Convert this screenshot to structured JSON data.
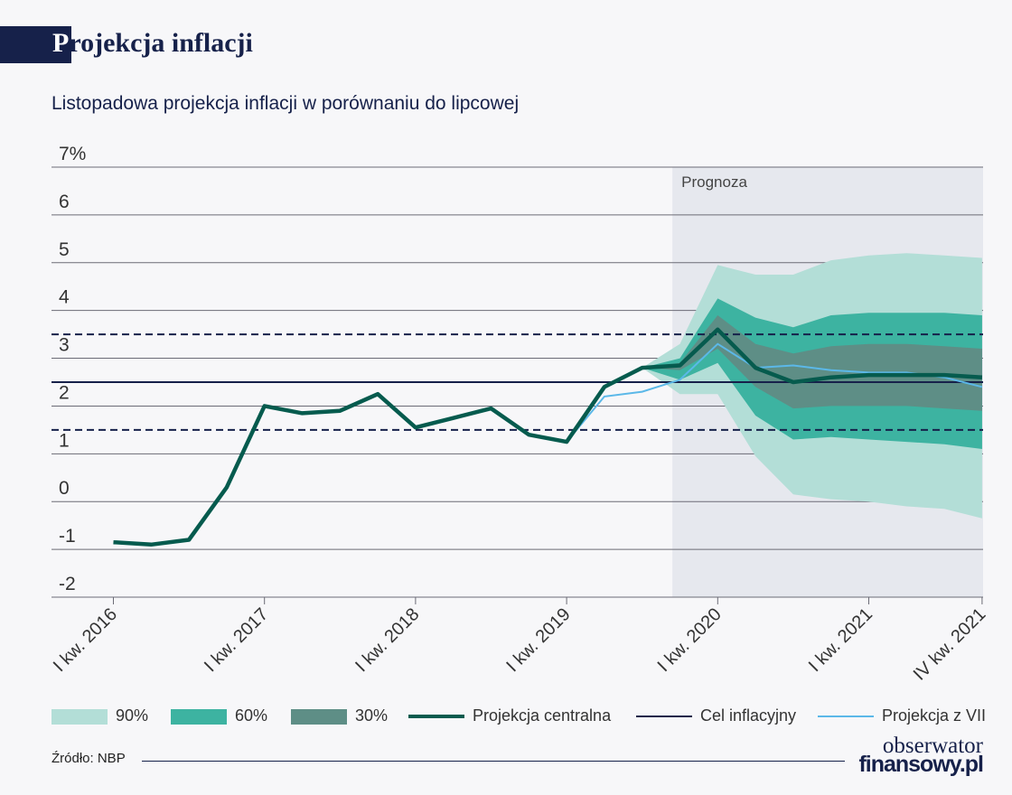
{
  "header": {
    "title_first": "P",
    "title_rest": "rojekcja inflacji"
  },
  "subtitle": "Listopadowa projekcja inflacji w porównaniu do lipcowej",
  "colors": {
    "background": "#f7f7f9",
    "forecast_area": "#e6e8ee",
    "band_90": "#b3ded7",
    "band_60": "#3db3a1",
    "band_30": "#5e8e86",
    "central": "#065b4e",
    "target": "#16214a",
    "july": "#5bb8e8",
    "grid": "#6b6b76"
  },
  "chart_data": {
    "type": "line",
    "forecast_label": "Prognoza",
    "forecast_start_index": 14.8,
    "y_ticks": [
      "7%",
      "6",
      "5",
      "4",
      "3",
      "2",
      "1",
      "0",
      "-1",
      "-2"
    ],
    "y_tick_values": [
      7,
      6,
      5,
      4,
      3,
      2,
      1,
      0,
      -1,
      -2
    ],
    "ylim": [
      -2,
      7
    ],
    "x_labels": [
      {
        "i": 0,
        "label": "I kw. 2016"
      },
      {
        "i": 4,
        "label": "I kw. 2017"
      },
      {
        "i": 8,
        "label": "I kw. 2018"
      },
      {
        "i": 12,
        "label": "I kw. 2019"
      },
      {
        "i": 16,
        "label": "I kw. 2020"
      },
      {
        "i": 20,
        "label": "I kw. 2021"
      },
      {
        "i": 23,
        "label": "IV kw. 2021"
      }
    ],
    "central": [
      -0.85,
      -0.9,
      -0.8,
      0.3,
      2.0,
      1.85,
      1.9,
      2.25,
      1.55,
      1.75,
      1.95,
      1.4,
      1.25,
      2.4,
      2.8,
      2.85,
      3.6,
      2.8,
      2.5,
      2.6,
      2.65,
      2.65,
      2.65,
      2.6
    ],
    "july": {
      "start_index": 12,
      "values": [
        1.25,
        2.2,
        2.3,
        2.55,
        3.3,
        2.8,
        2.85,
        2.75,
        2.7,
        2.7,
        2.6,
        2.4
      ]
    },
    "band_start_index": 14,
    "bands": {
      "p90_upper": [
        2.8,
        3.3,
        4.95,
        4.75,
        4.75,
        5.05,
        5.15,
        5.2,
        5.15,
        5.1
      ],
      "p90_lower": [
        2.8,
        2.25,
        2.25,
        0.95,
        0.15,
        0.05,
        0.0,
        -0.1,
        -0.15,
        -0.35
      ],
      "p60_upper": [
        2.8,
        3.0,
        4.25,
        3.85,
        3.65,
        3.9,
        3.95,
        3.95,
        3.95,
        3.9
      ],
      "p60_lower": [
        2.8,
        2.55,
        2.9,
        1.8,
        1.3,
        1.35,
        1.3,
        1.25,
        1.2,
        1.1
      ],
      "p30_upper": [
        2.8,
        2.9,
        3.9,
        3.3,
        3.1,
        3.25,
        3.3,
        3.3,
        3.25,
        3.2
      ],
      "p30_lower": [
        2.8,
        2.75,
        3.2,
        2.4,
        1.95,
        2.0,
        2.0,
        2.0,
        1.95,
        1.9
      ]
    },
    "target": 2.5,
    "tolerance": [
      1.5,
      3.5
    ],
    "legend": [
      {
        "label": "90%",
        "kind": "band",
        "color": "#b3ded7"
      },
      {
        "label": "60%",
        "kind": "band",
        "color": "#3db3a1"
      },
      {
        "label": "30%",
        "kind": "band",
        "color": "#5e8e86"
      },
      {
        "label": "Projekcja centralna",
        "kind": "line",
        "color": "#065b4e"
      },
      {
        "label": "Cel inflacyjny",
        "kind": "line",
        "color": "#16214a"
      },
      {
        "label": "Projekcja z VII",
        "kind": "line",
        "color": "#5bb8e8"
      }
    ]
  },
  "footer": {
    "source": "Źródło: NBP",
    "logo_line1": "obserwator",
    "logo_line2": "finansowy.pl"
  }
}
